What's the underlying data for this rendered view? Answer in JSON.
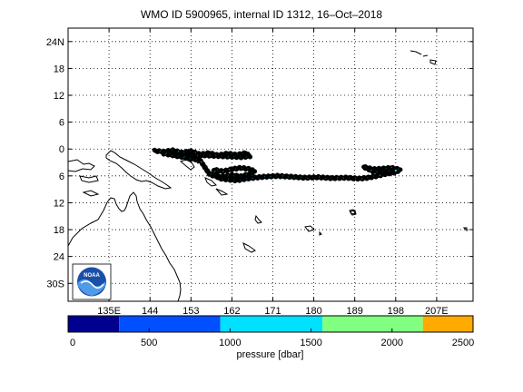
{
  "title": "WMO ID 5900965, internal ID 1312, 16–Oct–2018",
  "map": {
    "lon_range": [
      126,
      215
    ],
    "lat_range": [
      -34,
      27
    ],
    "lon_ticks": [
      {
        "value": 135,
        "label": "135E"
      },
      {
        "value": 144,
        "label": "144"
      },
      {
        "value": 153,
        "label": "153"
      },
      {
        "value": 162,
        "label": "162"
      },
      {
        "value": 171,
        "label": "171"
      },
      {
        "value": 180,
        "label": "180"
      },
      {
        "value": 189,
        "label": "189"
      },
      {
        "value": 198,
        "label": "198"
      },
      {
        "value": 207,
        "label": "207E"
      }
    ],
    "lat_ticks": [
      {
        "value": 24,
        "label": "24N"
      },
      {
        "value": 18,
        "label": "18"
      },
      {
        "value": 12,
        "label": "12"
      },
      {
        "value": 6,
        "label": "6"
      },
      {
        "value": 0,
        "label": "0"
      },
      {
        "value": -6,
        "label": "6"
      },
      {
        "value": -12,
        "label": "12"
      },
      {
        "value": -18,
        "label": "18"
      },
      {
        "value": -24,
        "label": "24"
      },
      {
        "value": -30,
        "label": "30S"
      }
    ],
    "grid": "dotted",
    "logo": "noaa-logo",
    "logo_text": "NOAA"
  },
  "float_tracks": [
    {
      "name": "",
      "points": [
        [
          145,
          -0.4
        ],
        [
          147,
          -0.6
        ],
        [
          149,
          -0.3
        ],
        [
          151,
          -0.8
        ],
        [
          153,
          -0.5
        ],
        [
          155,
          -1.2
        ],
        [
          157,
          -0.9
        ],
        [
          159,
          -1.4
        ],
        [
          161,
          -1.0
        ],
        [
          163,
          -1.3
        ],
        [
          165,
          -0.9
        ],
        [
          166,
          -1.6
        ],
        [
          164,
          -1.8
        ],
        [
          160,
          -1.6
        ],
        [
          156,
          -1.4
        ],
        [
          153,
          -1.6
        ],
        [
          150,
          -1.3
        ],
        [
          147,
          -1.0
        ],
        [
          155,
          -2.5
        ],
        [
          156,
          -4.0
        ],
        [
          157,
          -5.5
        ],
        [
          158,
          -6.0
        ],
        [
          160,
          -6.2
        ],
        [
          162,
          -5.8
        ],
        [
          164,
          -6.1
        ],
        [
          166,
          -5.5
        ],
        [
          167,
          -5.0
        ],
        [
          166,
          -4.5
        ],
        [
          164,
          -4.2
        ],
        [
          162,
          -4.5
        ],
        [
          160,
          -5.0
        ],
        [
          158,
          -4.6
        ],
        [
          159,
          -6.5
        ],
        [
          161,
          -6.8
        ],
        [
          163,
          -7.0
        ],
        [
          166,
          -6.5
        ],
        [
          169,
          -6.2
        ],
        [
          172,
          -6.0
        ],
        [
          175,
          -6.2
        ],
        [
          178,
          -6.4
        ],
        [
          181,
          -6.3
        ],
        [
          184,
          -6.5
        ],
        [
          187,
          -6.4
        ],
        [
          190,
          -6.6
        ],
        [
          192,
          -6.4
        ],
        [
          194,
          -6.0
        ],
        [
          196,
          -5.5
        ],
        [
          198,
          -5.2
        ],
        [
          199,
          -4.6
        ],
        [
          197,
          -4.2
        ],
        [
          195,
          -4.4
        ],
        [
          193,
          -4.5
        ],
        [
          191,
          -4.0
        ],
        [
          193,
          -5.0
        ],
        [
          196,
          -5.0
        ],
        [
          198,
          -4.8
        ]
      ]
    }
  ],
  "colorbar": {
    "label": "pressure [dbar]",
    "min": 0,
    "max": 2500,
    "ticks": [
      {
        "value": 0,
        "label": "0"
      },
      {
        "value": 500,
        "label": "500"
      },
      {
        "value": 1000,
        "label": "1000"
      },
      {
        "value": 1500,
        "label": "1500"
      },
      {
        "value": 2000,
        "label": "2000"
      },
      {
        "value": 2500,
        "label": "2500"
      }
    ],
    "bands": [
      {
        "from": 0,
        "to": 315,
        "color": "#00008f"
      },
      {
        "from": 315,
        "to": 940,
        "color": "#0050ff"
      },
      {
        "from": 940,
        "to": 1570,
        "color": "#00e0ff"
      },
      {
        "from": 1570,
        "to": 2190,
        "color": "#80ff80"
      },
      {
        "from": 2190,
        "to": 2500,
        "color": "#ffaa00"
      }
    ]
  }
}
